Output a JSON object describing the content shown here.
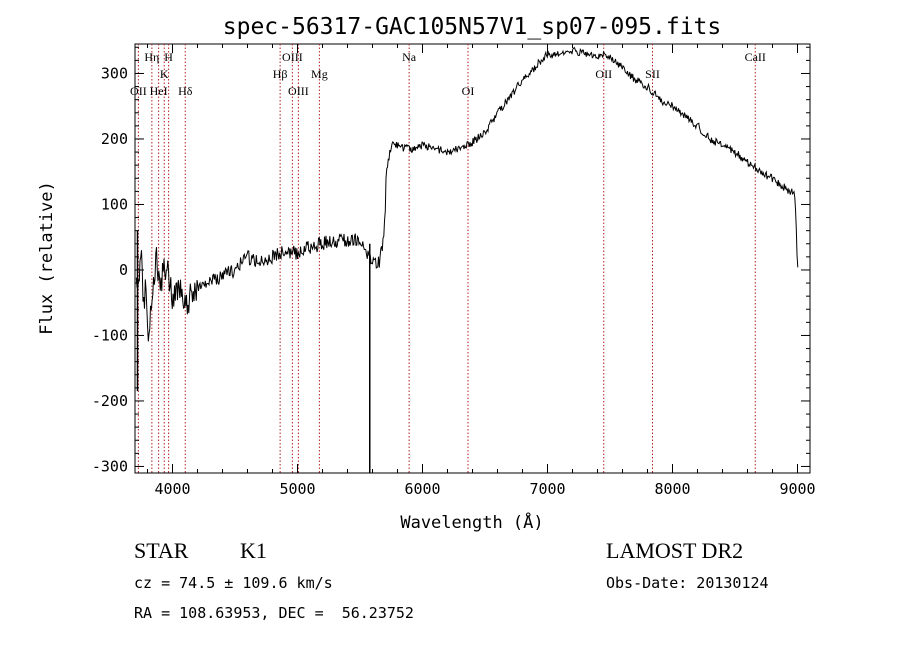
{
  "chart_data": {
    "type": "line",
    "title": "spec-56317-GAC105N57V1_sp07-095.fits",
    "xlabel": "Wavelength (Å)",
    "ylabel": "Flux (relative)",
    "xlim": [
      3700,
      9100
    ],
    "ylim": [
      -310,
      345
    ],
    "xticks": [
      4000,
      5000,
      6000,
      7000,
      8000,
      9000
    ],
    "yticks": [
      -300,
      -200,
      -100,
      0,
      100,
      200,
      300
    ],
    "grid": false,
    "line_color": "#000000",
    "marker_color": "#b22222",
    "series": [
      {
        "x": [
          3710,
          3730,
          3750,
          3770,
          3790,
          3810,
          3830,
          3850,
          3870,
          3900,
          3950,
          4000,
          4050,
          4100,
          4150,
          4200,
          4300,
          4400,
          4500,
          4600,
          4700,
          4800,
          4900,
          5000,
          5100,
          5200,
          5300,
          5400,
          5500,
          5550,
          5600,
          5650,
          5680,
          5700,
          5710,
          5750,
          5800,
          5850,
          5900,
          6000,
          6100,
          6200,
          6300,
          6400,
          6500,
          6600,
          6700,
          6800,
          6900,
          7000,
          7100,
          7200,
          7300,
          7400,
          7450,
          7500,
          7600,
          7700,
          7800,
          7900,
          8000,
          8100,
          8200,
          8300,
          8400,
          8500,
          8600,
          8700,
          8800,
          8900,
          8980,
          9000
        ],
        "y": [
          5,
          -40,
          30,
          -60,
          -20,
          -110,
          -50,
          -10,
          20,
          -20,
          10,
          -40,
          -30,
          -50,
          -40,
          -30,
          -20,
          -10,
          0,
          20,
          10,
          20,
          30,
          25,
          35,
          40,
          45,
          45,
          45,
          30,
          10,
          10,
          40,
          80,
          150,
          190,
          190,
          185,
          185,
          190,
          185,
          180,
          185,
          195,
          210,
          240,
          265,
          290,
          310,
          330,
          330,
          335,
          330,
          325,
          330,
          325,
          310,
          290,
          280,
          260,
          250,
          235,
          220,
          200,
          190,
          180,
          165,
          150,
          140,
          125,
          115,
          5
        ]
      }
    ],
    "spikes": [
      {
        "x": 3720,
        "low": -185,
        "high": 60
      },
      {
        "x": 5578,
        "low": -310,
        "high": 40
      }
    ],
    "lines": [
      {
        "wl": 3727,
        "top": "",
        "mid": "",
        "bot": "OII"
      },
      {
        "wl": 3835,
        "top": "Hη",
        "mid": "",
        "bot": ""
      },
      {
        "wl": 3889,
        "top": "",
        "mid": "",
        "bot": "HeI"
      },
      {
        "wl": 3934,
        "top": "",
        "mid": "K",
        "bot": ""
      },
      {
        "wl": 3969,
        "top": "H",
        "mid": "",
        "bot": ""
      },
      {
        "wl": 4102,
        "top": "",
        "mid": "",
        "bot": "Hδ"
      },
      {
        "wl": 4861,
        "top": "",
        "mid": "Hβ",
        "bot": ""
      },
      {
        "wl": 4959,
        "top": "OIII",
        "mid": "",
        "bot": ""
      },
      {
        "wl": 5007,
        "top": "",
        "mid": "",
        "bot": "OIII"
      },
      {
        "wl": 5175,
        "top": "",
        "mid": "Mg",
        "bot": ""
      },
      {
        "wl": 5893,
        "top": "Na",
        "mid": "",
        "bot": ""
      },
      {
        "wl": 6364,
        "top": "",
        "mid": "",
        "bot": "OI"
      },
      {
        "wl": 7450,
        "top": "",
        "mid": "OII",
        "bot": ""
      },
      {
        "wl": 7840,
        "top": "",
        "mid": "SII",
        "bot": ""
      },
      {
        "wl": 8662,
        "top": "CaII",
        "mid": "",
        "bot": ""
      }
    ]
  },
  "info": {
    "class_label": "STAR",
    "subclass": "K1",
    "survey": "LAMOST DR2",
    "cz": "cz = 74.5 ± 109.6 km/s",
    "obs_date": "Obs-Date: 20130124",
    "coords": "RA = 108.63953, DEC =  56.23752"
  }
}
